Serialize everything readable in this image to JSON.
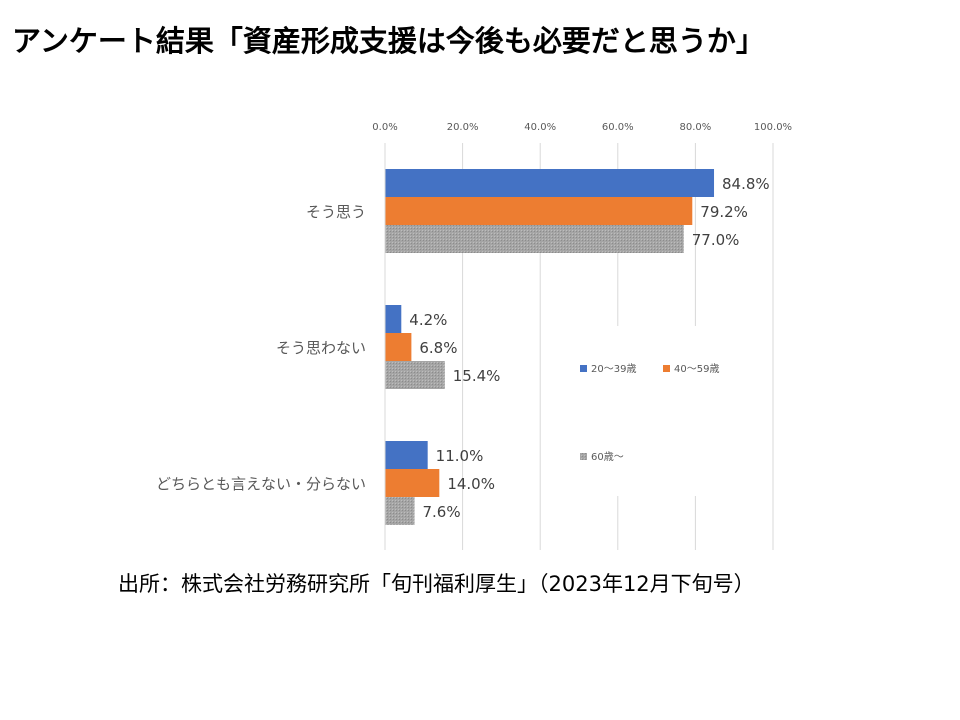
{
  "title": "アンケート結果「資産形成支援は今後も必要だと思うか」",
  "source": "出所：株式会社労務研究所「旬刊福利厚生」（2023年12月下旬号）",
  "chart_data": {
    "type": "bar",
    "orientation": "horizontal",
    "categories": [
      "そう思う",
      "そう思わない",
      "どちらとも言えない・分らない"
    ],
    "series": [
      {
        "name": "20〜39歳",
        "color": "#4472C4",
        "values": [
          84.8,
          4.2,
          11.0
        ],
        "labels": [
          "84.8%",
          "4.2%",
          "11.0%"
        ]
      },
      {
        "name": "40〜59歳",
        "color": "#ED7D31",
        "values": [
          79.2,
          6.8,
          14.0
        ],
        "labels": [
          "79.2%",
          "6.8%",
          "14.0%"
        ]
      },
      {
        "name": "60歳〜",
        "color": "#A5A5A5",
        "values": [
          77.0,
          15.4,
          7.6
        ],
        "labels": [
          "77.0%",
          "15.4%",
          "7.6%"
        ]
      }
    ],
    "xlim": [
      0,
      100
    ],
    "ticks": [
      "0.0%",
      "20.0%",
      "40.0%",
      "60.0%",
      "80.0%",
      "100.0%"
    ],
    "grid": true,
    "legend": "right-inside"
  }
}
